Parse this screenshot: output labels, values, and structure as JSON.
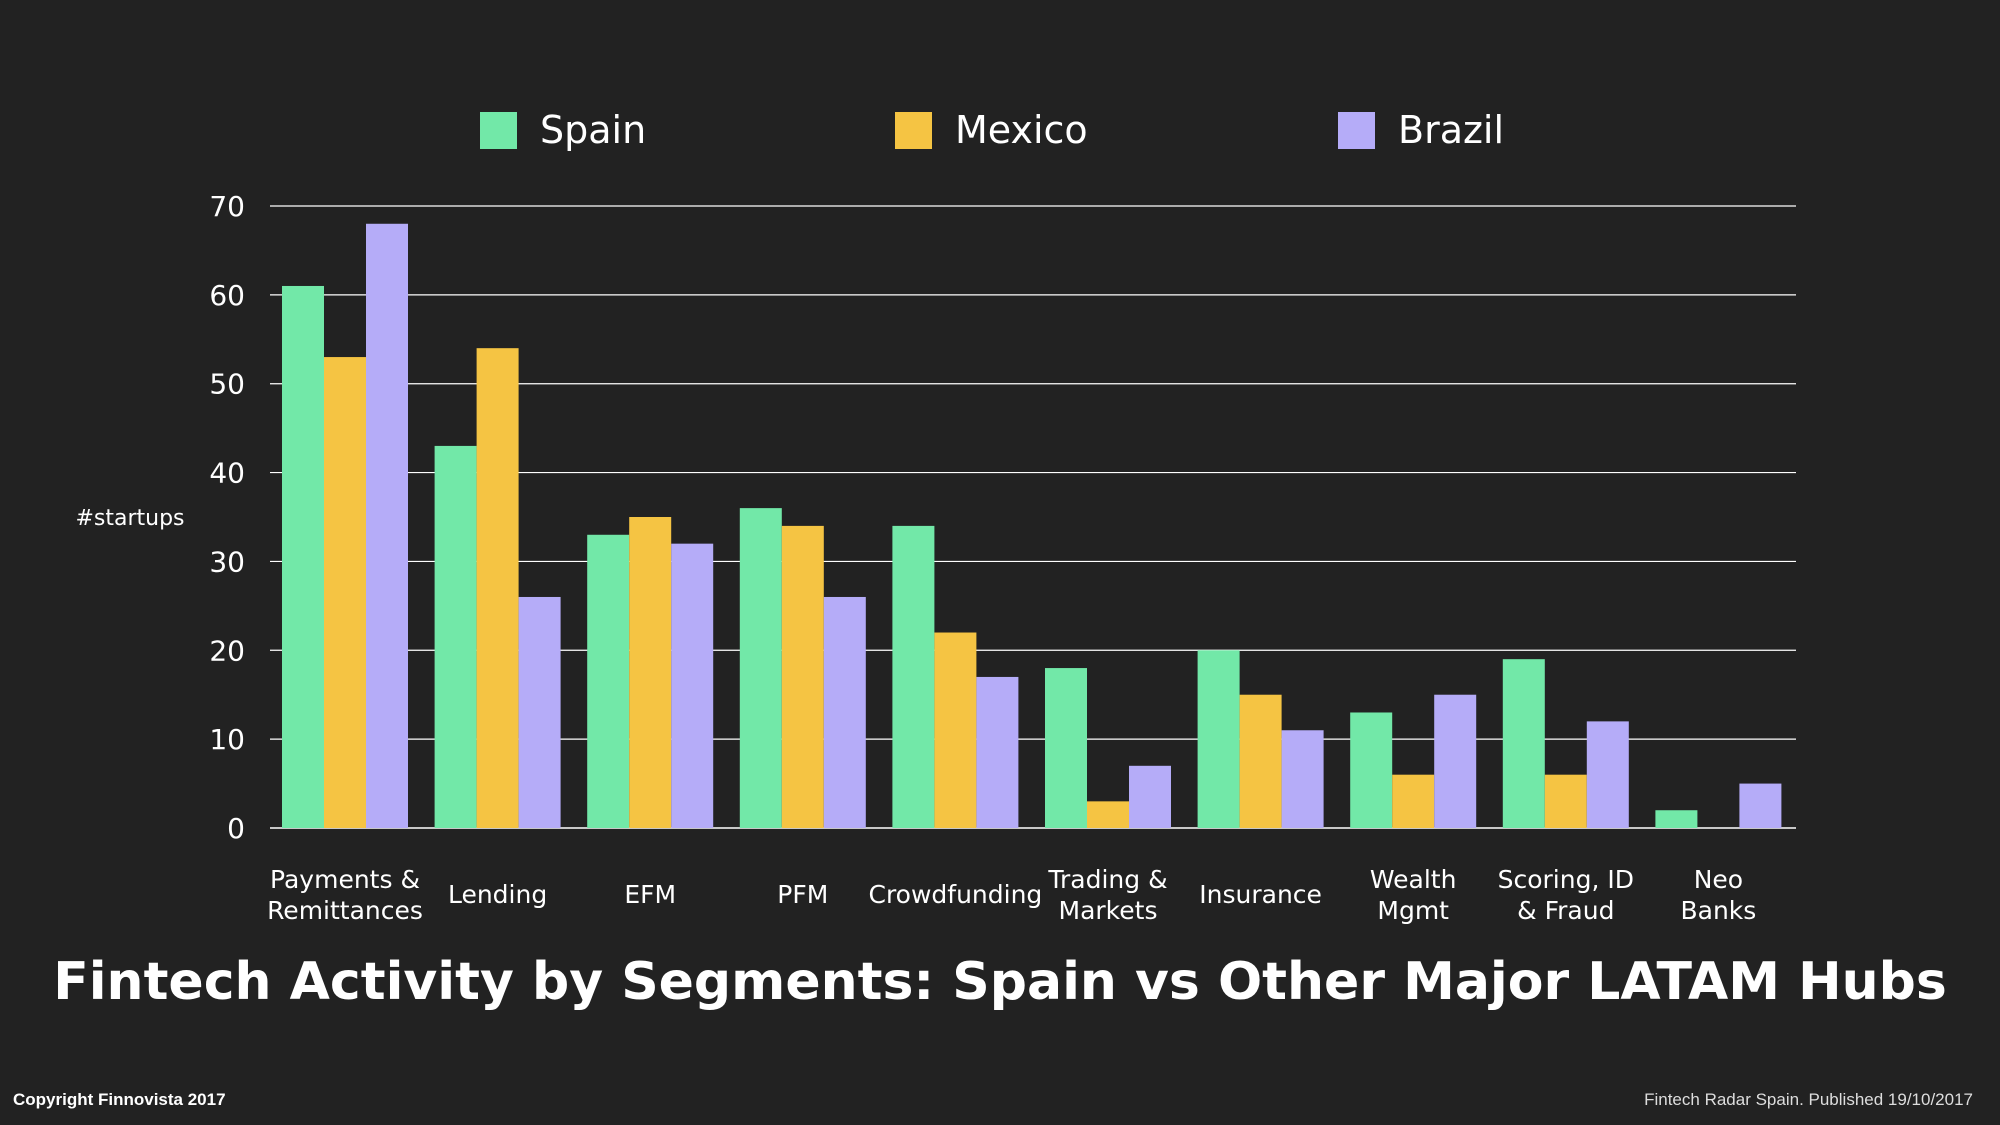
{
  "chart_data": {
    "type": "bar",
    "title": "Fintech Activity by Segments: Spain vs Other Major LATAM Hubs",
    "ylabel": "#startups",
    "xlabel": "",
    "ylim": [
      0,
      70
    ],
    "yticks": [
      0,
      10,
      20,
      30,
      40,
      50,
      60,
      70
    ],
    "grid": true,
    "legend_position": "top",
    "categories": [
      [
        "Payments &",
        "Remittances"
      ],
      [
        "Lending"
      ],
      [
        "EFM"
      ],
      [
        "PFM"
      ],
      [
        "Crowdfunding"
      ],
      [
        "Trading &",
        "Markets"
      ],
      [
        "Insurance"
      ],
      [
        "Wealth",
        "Mgmt"
      ],
      [
        "Scoring, ID",
        "& Fraud"
      ],
      [
        "Neo",
        "Banks"
      ]
    ],
    "series": [
      {
        "name": "Spain",
        "color": "#72E8A8",
        "values": [
          61,
          43,
          33,
          36,
          34,
          18,
          20,
          13,
          19,
          2
        ]
      },
      {
        "name": "Mexico",
        "color": "#F5C443",
        "values": [
          53,
          54,
          35,
          34,
          22,
          3,
          15,
          6,
          6,
          0
        ]
      },
      {
        "name": "Brazil",
        "color": "#B5ACF8",
        "values": [
          68,
          26,
          32,
          26,
          17,
          7,
          11,
          15,
          12,
          5
        ]
      }
    ]
  },
  "footer": {
    "copyright": "Copyright Finnovista 2017",
    "source": "Fintech Radar Spain. Published 19/10/2017"
  }
}
